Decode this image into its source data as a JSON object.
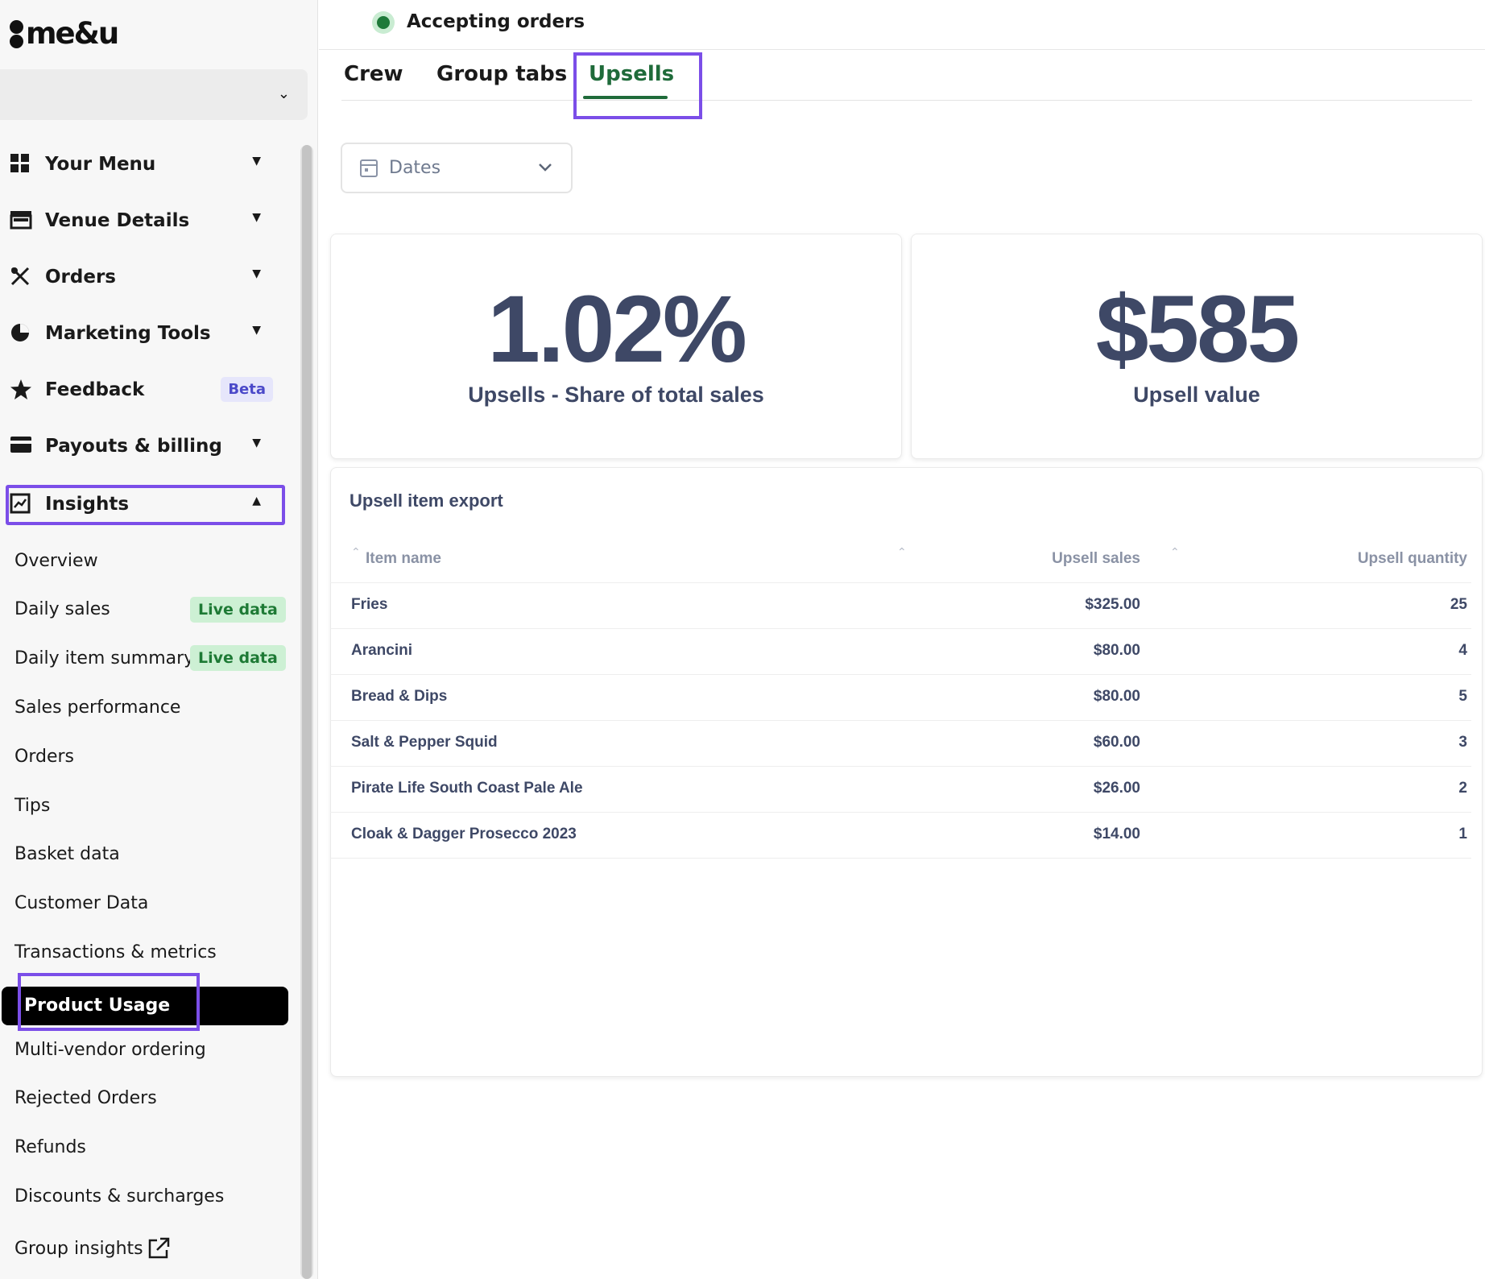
{
  "logo": {
    "text": "me&u"
  },
  "venue_select": {
    "value": ""
  },
  "sidebar": {
    "nav": [
      {
        "label": "Your Menu",
        "icon": "grid-icon",
        "expandable": true
      },
      {
        "label": "Venue Details",
        "icon": "store-icon",
        "expandable": true
      },
      {
        "label": "Orders",
        "icon": "utensils-icon",
        "expandable": true
      },
      {
        "label": "Marketing Tools",
        "icon": "pie-chart-icon",
        "expandable": true
      },
      {
        "label": "Feedback",
        "icon": "star-icon",
        "badge": "Beta"
      },
      {
        "label": "Payouts & billing",
        "icon": "credit-card-icon",
        "expandable": true
      },
      {
        "label": "Insights",
        "icon": "trend-chart-icon",
        "expanded": true
      }
    ],
    "insights_items": [
      {
        "label": "Overview"
      },
      {
        "label": "Daily sales",
        "badge": "Live data"
      },
      {
        "label": "Daily item summary",
        "badge": "Live data"
      },
      {
        "label": "Sales performance"
      },
      {
        "label": "Orders"
      },
      {
        "label": "Tips"
      },
      {
        "label": "Basket data"
      },
      {
        "label": "Customer Data"
      },
      {
        "label": "Transactions & metrics"
      },
      {
        "label": "Product Usage",
        "active": true
      },
      {
        "label": "Multi-vendor ordering"
      },
      {
        "label": "Rejected Orders"
      },
      {
        "label": "Refunds"
      },
      {
        "label": "Discounts & surcharges"
      },
      {
        "label": "Group insights",
        "icon": "external-link-icon"
      }
    ]
  },
  "status": {
    "label": "Accepting orders",
    "color": "#1f7a3a"
  },
  "tabs": [
    {
      "label": "Crew"
    },
    {
      "label": "Group tabs"
    },
    {
      "label": "Upsells",
      "active": true
    }
  ],
  "date_filter": {
    "label": "Dates"
  },
  "stats": [
    {
      "value": "1.02%",
      "label": "Upsells - Share of total sales"
    },
    {
      "value": "$585",
      "label": "Upsell value"
    }
  ],
  "table": {
    "title": "Upsell item export",
    "columns": [
      "Item name",
      "Upsell sales",
      "Upsell quantity"
    ],
    "rows": [
      {
        "name": "Fries",
        "sales": "$325.00",
        "qty": "25"
      },
      {
        "name": "Arancini",
        "sales": "$80.00",
        "qty": "4"
      },
      {
        "name": "Bread & Dips",
        "sales": "$80.00",
        "qty": "5"
      },
      {
        "name": "Salt & Pepper Squid",
        "sales": "$60.00",
        "qty": "3"
      },
      {
        "name": "Pirate Life South Coast Pale Ale",
        "sales": "$26.00",
        "qty": "2"
      },
      {
        "name": "Cloak & Dagger Prosecco 2023",
        "sales": "$14.00",
        "qty": "1"
      }
    ]
  },
  "colors": {
    "accent_green": "#1f6b3a",
    "highlight_purple": "#7b4ee8",
    "stat_text": "#3e4866"
  }
}
